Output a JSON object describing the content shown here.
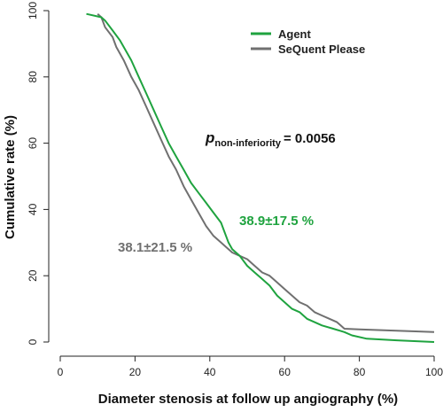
{
  "chart_data": {
    "type": "line",
    "title": "",
    "xlabel": "Diameter stenosis at follow up angiography (%)",
    "ylabel": "Cumulative rate (%)",
    "xlim": [
      0,
      100
    ],
    "ylim": [
      0,
      100
    ],
    "x_ticks": [
      "0",
      "20",
      "40",
      "60",
      "80",
      "100"
    ],
    "y_ticks": [
      "0",
      "20",
      "40",
      "60",
      "80",
      "100"
    ],
    "grid": false,
    "legend_position": "top-right",
    "series": [
      {
        "name": "Agent",
        "color": "#1fa33f",
        "points": [
          [
            7,
            99
          ],
          [
            11,
            98
          ],
          [
            12,
            97
          ],
          [
            14,
            94
          ],
          [
            16,
            91
          ],
          [
            17,
            89
          ],
          [
            19,
            85
          ],
          [
            21,
            80
          ],
          [
            23,
            75
          ],
          [
            25,
            70
          ],
          [
            27,
            65
          ],
          [
            29,
            60
          ],
          [
            31,
            56
          ],
          [
            33,
            52
          ],
          [
            35,
            48
          ],
          [
            37,
            45
          ],
          [
            39,
            42
          ],
          [
            41,
            39
          ],
          [
            43,
            36
          ],
          [
            44,
            33
          ],
          [
            45,
            30
          ],
          [
            46,
            28
          ],
          [
            48,
            26
          ],
          [
            50,
            23
          ],
          [
            52,
            21
          ],
          [
            54,
            19
          ],
          [
            56,
            17
          ],
          [
            58,
            14
          ],
          [
            60,
            12
          ],
          [
            62,
            10
          ],
          [
            64,
            9
          ],
          [
            66,
            7
          ],
          [
            68,
            6
          ],
          [
            70,
            5
          ],
          [
            73,
            4
          ],
          [
            76,
            3
          ],
          [
            78,
            2
          ],
          [
            82,
            1
          ],
          [
            90,
            0.5
          ],
          [
            100,
            0
          ]
        ]
      },
      {
        "name": "SeQuent Please",
        "color": "#707070",
        "points": [
          [
            10,
            99
          ],
          [
            11,
            98
          ],
          [
            12,
            95
          ],
          [
            14,
            92
          ],
          [
            15,
            89
          ],
          [
            17,
            85
          ],
          [
            19,
            80
          ],
          [
            21,
            76
          ],
          [
            23,
            71
          ],
          [
            25,
            66
          ],
          [
            27,
            61
          ],
          [
            29,
            56
          ],
          [
            31,
            52
          ],
          [
            33,
            47
          ],
          [
            35,
            43
          ],
          [
            37,
            39
          ],
          [
            39,
            35
          ],
          [
            41,
            32
          ],
          [
            43,
            30
          ],
          [
            45,
            28
          ],
          [
            46,
            27
          ],
          [
            48,
            26
          ],
          [
            50,
            25
          ],
          [
            52,
            23
          ],
          [
            54,
            21
          ],
          [
            56,
            20
          ],
          [
            58,
            18
          ],
          [
            60,
            16
          ],
          [
            62,
            14
          ],
          [
            64,
            12
          ],
          [
            66,
            11
          ],
          [
            68,
            9
          ],
          [
            70,
            8
          ],
          [
            72,
            7
          ],
          [
            74,
            6
          ],
          [
            75,
            5
          ],
          [
            76,
            4
          ],
          [
            80,
            3.8
          ],
          [
            100,
            3
          ]
        ]
      }
    ],
    "annotations": {
      "p_symbol": "p",
      "p_subscript": "non-inferiority",
      "p_value": "= 0.0056",
      "agent_mean": "38.9±17.5 %",
      "sequent_mean": "38.1±21.5 %"
    }
  }
}
